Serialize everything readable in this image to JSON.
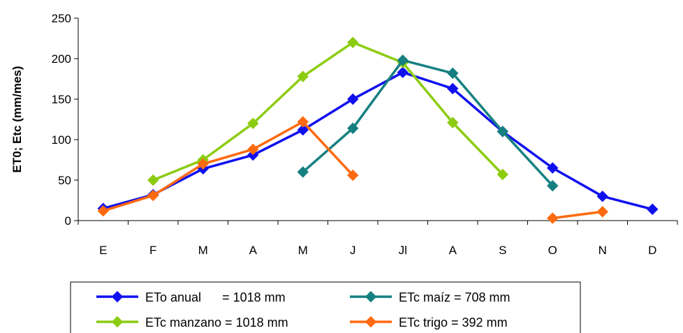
{
  "chart_data": {
    "type": "line",
    "ylabel": "ET0; Etc (mm/mes)",
    "xlabel": "",
    "categories": [
      "E",
      "F",
      "M",
      "A",
      "M",
      "J",
      "Jl",
      "A",
      "S",
      "O",
      "N",
      "D"
    ],
    "ylim": [
      0,
      250
    ],
    "yticks": [
      0,
      50,
      100,
      150,
      200,
      250
    ],
    "grid": false,
    "legend_position": "bottom",
    "series": [
      {
        "name": "ETo anual      = 1018 mm",
        "color": "#1010ee",
        "values": [
          15,
          32,
          64,
          81,
          112,
          150,
          183,
          163,
          110,
          65,
          30,
          14
        ]
      },
      {
        "name": "ETc maíz = 708 mm",
        "color": "#168080",
        "values": [
          null,
          null,
          null,
          null,
          60,
          114,
          198,
          182,
          110,
          43,
          null,
          null
        ]
      },
      {
        "name": "ETc manzano = 1018 mm",
        "color": "#8ccc10",
        "values": [
          null,
          50,
          75,
          120,
          178,
          220,
          195,
          121,
          57,
          null,
          null,
          null
        ]
      },
      {
        "name": "ETc trigo = 392 mm",
        "color": "#ff6a10",
        "values": [
          12,
          31,
          70,
          88,
          122,
          56,
          null,
          null,
          null,
          3,
          11,
          null
        ]
      }
    ]
  }
}
